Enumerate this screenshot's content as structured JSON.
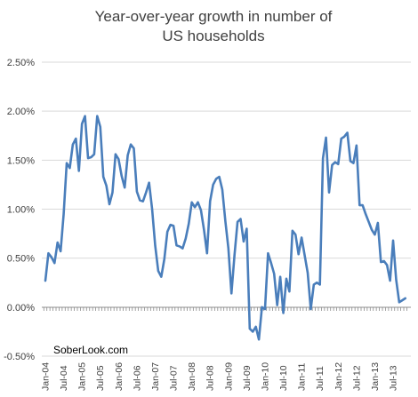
{
  "chart_data": {
    "type": "line",
    "title_lines": [
      "Year-over-year growth in number of",
      "US households"
    ],
    "xlabel": "",
    "ylabel": "",
    "ylim": [
      -0.5,
      2.5
    ],
    "y_ticks": [
      "-0.50%",
      "0.00%",
      "0.50%",
      "1.00%",
      "1.50%",
      "2.00%",
      "2.50%"
    ],
    "y_tick_values": [
      -0.5,
      0,
      0.5,
      1,
      1.5,
      2,
      2.5
    ],
    "x_ticks": [
      "Jan-04",
      "Jul-04",
      "Jan-05",
      "Jul-05",
      "Jan-06",
      "Jul-06",
      "Jan-07",
      "Jul-07",
      "Jan-08",
      "Jul-08",
      "Jan-09",
      "Jul-09",
      "Jan-10",
      "Jul-10",
      "Jan-11",
      "Jul-11",
      "Jan-12",
      "Jul-12",
      "Jan-13",
      "Jul-13"
    ],
    "gridlines": "horizontal",
    "annotation": "SoberLook.com",
    "series": [
      {
        "color": "#4a7ebb",
        "x_start": "Jan-04",
        "frequency": "monthly",
        "values": [
          0.27,
          0.55,
          0.51,
          0.45,
          0.66,
          0.57,
          0.95,
          1.47,
          1.42,
          1.66,
          1.72,
          1.39,
          1.87,
          1.95,
          1.52,
          1.53,
          1.56,
          1.95,
          1.84,
          1.33,
          1.24,
          1.05,
          1.17,
          1.56,
          1.51,
          1.34,
          1.22,
          1.55,
          1.66,
          1.62,
          1.18,
          1.09,
          1.08,
          1.17,
          1.27,
          1.0,
          0.63,
          0.37,
          0.31,
          0.49,
          0.77,
          0.84,
          0.83,
          0.63,
          0.62,
          0.6,
          0.7,
          0.85,
          1.07,
          1.02,
          1.07,
          0.99,
          0.79,
          0.55,
          1.08,
          1.25,
          1.31,
          1.33,
          1.2,
          0.88,
          0.6,
          0.14,
          0.53,
          0.87,
          0.9,
          0.67,
          0.8,
          -0.22,
          -0.25,
          -0.2,
          -0.33,
          0.0,
          -0.02,
          0.55,
          0.45,
          0.34,
          0.02,
          0.31,
          -0.06,
          0.29,
          0.16,
          0.78,
          0.74,
          0.54,
          0.71,
          0.53,
          0.35,
          -0.02,
          0.23,
          0.25,
          0.23,
          1.52,
          1.73,
          1.17,
          1.45,
          1.48,
          1.46,
          1.72,
          1.74,
          1.78,
          1.49,
          1.47,
          1.65,
          1.04,
          1.04,
          0.95,
          0.87,
          0.79,
          0.74,
          0.86,
          0.46,
          0.47,
          0.43,
          0.27,
          0.68,
          0.28,
          0.05,
          0.07,
          0.09
        ]
      }
    ]
  }
}
